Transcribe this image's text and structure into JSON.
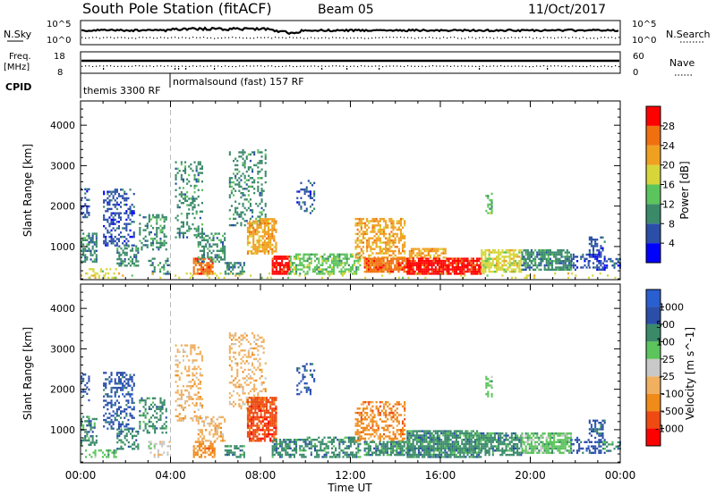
{
  "header": {
    "station": "South Pole Station (fitACF)",
    "beam": "Beam 05",
    "date": "11/Oct/2017"
  },
  "sky_panel": {
    "left_label": "N.Sky",
    "right_label": "N.Search",
    "left_ticks": [
      "10^5",
      "10^0"
    ],
    "right_ticks": [
      "10^5",
      "10^0"
    ]
  },
  "freq_panel": {
    "left_label_1": "Freq.",
    "left_label_2": "[MHz]",
    "left_ticks": [
      "18",
      "8"
    ],
    "right_label": "Nave",
    "right_ticks": [
      "60",
      "0"
    ]
  },
  "cpid": {
    "label": "CPID",
    "programs": [
      {
        "name": "themis 3300 RF",
        "start_hour": 0.0
      },
      {
        "name": "normalsound (fast) 157 RF",
        "start_hour": 4.0
      }
    ]
  },
  "colors": {
    "power": [
      "#0000ff",
      "#2b4fa8",
      "#3a8a6a",
      "#5cc45c",
      "#d6d63a",
      "#f0a020",
      "#f07010",
      "#ff0000"
    ],
    "velocity": [
      "#ff0000",
      "#ee4a12",
      "#f08a18",
      "#f0b060",
      "#c8c8c8",
      "#5cc45c",
      "#3a8a6a",
      "#2b4fa8",
      "#2a5fd0"
    ]
  },
  "chart_data": [
    {
      "type": "heatmap",
      "title": "",
      "xlabel": "",
      "ylabel": "Slant Range [km]",
      "xlim": [
        0,
        24
      ],
      "ylim": [
        180,
        4600
      ],
      "yticks": [
        1000,
        2000,
        3000,
        4000
      ],
      "colorbar_label": "Power [dB]",
      "colorbar_ticks": [
        "4",
        "8",
        "12",
        "16",
        "20",
        "24",
        "28"
      ],
      "clusters": [
        {
          "t0": 0.0,
          "t1": 0.7,
          "r0": 600,
          "r1": 1300,
          "level": 2,
          "density": 0.55
        },
        {
          "t0": 0.0,
          "t1": 0.4,
          "r0": 1700,
          "r1": 2400,
          "level": 1,
          "density": 0.4
        },
        {
          "t0": 0.2,
          "t1": 1.6,
          "r0": 200,
          "r1": 450,
          "level": 4,
          "density": 0.35
        },
        {
          "t0": 1.0,
          "t1": 2.4,
          "r0": 1000,
          "r1": 2400,
          "level": 1,
          "density": 0.45
        },
        {
          "t0": 1.6,
          "t1": 2.6,
          "r0": 500,
          "r1": 1000,
          "level": 2,
          "density": 0.45
        },
        {
          "t0": 2.6,
          "t1": 3.8,
          "r0": 900,
          "r1": 1800,
          "level": 2,
          "density": 0.4
        },
        {
          "t0": 3.0,
          "t1": 4.0,
          "r0": 300,
          "r1": 700,
          "level": 2,
          "density": 0.35
        },
        {
          "t0": 4.2,
          "t1": 5.4,
          "r0": 1200,
          "r1": 3100,
          "level": 2,
          "density": 0.3
        },
        {
          "t0": 5.0,
          "t1": 5.9,
          "r0": 300,
          "r1": 700,
          "level": 6,
          "density": 0.7
        },
        {
          "t0": 5.2,
          "t1": 6.4,
          "r0": 600,
          "r1": 1300,
          "level": 2,
          "density": 0.45
        },
        {
          "t0": 6.4,
          "t1": 7.3,
          "r0": 300,
          "r1": 600,
          "level": 2,
          "density": 0.55
        },
        {
          "t0": 6.6,
          "t1": 8.2,
          "r0": 1500,
          "r1": 3400,
          "level": 2,
          "density": 0.3
        },
        {
          "t0": 7.4,
          "t1": 8.7,
          "r0": 800,
          "r1": 1700,
          "level": 5,
          "density": 0.7
        },
        {
          "t0": 8.5,
          "t1": 9.3,
          "r0": 300,
          "r1": 750,
          "level": 7,
          "density": 0.8
        },
        {
          "t0": 9.3,
          "t1": 12.4,
          "r0": 300,
          "r1": 800,
          "level": 3,
          "density": 0.6
        },
        {
          "t0": 9.6,
          "t1": 10.4,
          "r0": 1800,
          "r1": 2600,
          "level": 1,
          "density": 0.25
        },
        {
          "t0": 12.2,
          "t1": 14.4,
          "r0": 700,
          "r1": 1700,
          "level": 5,
          "density": 0.55
        },
        {
          "t0": 12.6,
          "t1": 14.6,
          "r0": 350,
          "r1": 700,
          "level": 6,
          "density": 0.85
        },
        {
          "t0": 14.6,
          "t1": 16.2,
          "r0": 700,
          "r1": 950,
          "level": 5,
          "density": 0.7
        },
        {
          "t0": 14.5,
          "t1": 17.8,
          "r0": 300,
          "r1": 700,
          "level": 7,
          "density": 0.9
        },
        {
          "t0": 17.8,
          "t1": 19.6,
          "r0": 350,
          "r1": 900,
          "level": 4,
          "density": 0.7
        },
        {
          "t0": 18.0,
          "t1": 18.3,
          "r0": 1800,
          "r1": 2300,
          "level": 3,
          "density": 0.5
        },
        {
          "t0": 19.6,
          "t1": 21.8,
          "r0": 400,
          "r1": 900,
          "level": 2,
          "density": 0.75
        },
        {
          "t0": 21.8,
          "t1": 22.6,
          "r0": 400,
          "r1": 800,
          "level": 1,
          "density": 0.4
        },
        {
          "t0": 22.6,
          "t1": 23.3,
          "r0": 400,
          "r1": 1200,
          "level": 1,
          "density": 0.45
        },
        {
          "t0": 23.2,
          "t1": 24.0,
          "r0": 450,
          "r1": 700,
          "level": 1,
          "density": 0.55
        },
        {
          "t0": 0.0,
          "t1": 24.0,
          "r0": 200,
          "r1": 320,
          "level": 4,
          "density": 0.12
        }
      ]
    },
    {
      "type": "heatmap",
      "title": "",
      "xlabel": "Time UT",
      "ylabel": "Slant Range [km]",
      "xlim": [
        0,
        24
      ],
      "ylim": [
        180,
        4600
      ],
      "yticks": [
        1000,
        2000,
        3000,
        4000
      ],
      "xticks": [
        "00:00",
        "04:00",
        "08:00",
        "12:00",
        "16:00",
        "20:00",
        "00:00"
      ],
      "colorbar_label": "Velocity [m s^-1]",
      "colorbar_ticks": [
        "-1000",
        "-500",
        "-100",
        "-25",
        "25",
        "100",
        "500",
        "1000"
      ],
      "clusters": [
        {
          "t0": 0.0,
          "t1": 0.7,
          "r0": 600,
          "r1": 1300,
          "level": 6,
          "density": 0.55
        },
        {
          "t0": 0.0,
          "t1": 0.4,
          "r0": 1700,
          "r1": 2400,
          "level": 7,
          "density": 0.35
        },
        {
          "t0": 0.2,
          "t1": 1.6,
          "r0": 300,
          "r1": 500,
          "level": 5,
          "density": 0.4
        },
        {
          "t0": 1.0,
          "t1": 2.4,
          "r0": 1000,
          "r1": 2400,
          "level": 7,
          "density": 0.4
        },
        {
          "t0": 1.6,
          "t1": 2.6,
          "r0": 500,
          "r1": 1000,
          "level": 6,
          "density": 0.45
        },
        {
          "t0": 2.6,
          "t1": 3.8,
          "r0": 900,
          "r1": 1800,
          "level": 6,
          "density": 0.4
        },
        {
          "t0": 3.0,
          "t1": 4.0,
          "r0": 300,
          "r1": 700,
          "level": 4,
          "density": 0.35
        },
        {
          "t0": 4.2,
          "t1": 5.4,
          "r0": 1200,
          "r1": 3100,
          "level": 3,
          "density": 0.3
        },
        {
          "t0": 5.0,
          "t1": 6.0,
          "r0": 300,
          "r1": 700,
          "level": 2,
          "density": 0.6
        },
        {
          "t0": 5.2,
          "t1": 6.4,
          "r0": 700,
          "r1": 1300,
          "level": 3,
          "density": 0.4
        },
        {
          "t0": 6.4,
          "t1": 7.3,
          "r0": 300,
          "r1": 600,
          "level": 6,
          "density": 0.5
        },
        {
          "t0": 6.6,
          "t1": 8.2,
          "r0": 1500,
          "r1": 3400,
          "level": 3,
          "density": 0.3
        },
        {
          "t0": 7.4,
          "t1": 8.7,
          "r0": 700,
          "r1": 1800,
          "level": 1,
          "density": 0.8
        },
        {
          "t0": 8.5,
          "t1": 9.3,
          "r0": 300,
          "r1": 750,
          "level": 6,
          "density": 0.7
        },
        {
          "t0": 9.3,
          "t1": 12.4,
          "r0": 300,
          "r1": 800,
          "level": 6,
          "density": 0.55
        },
        {
          "t0": 9.6,
          "t1": 10.4,
          "r0": 1800,
          "r1": 2600,
          "level": 7,
          "density": 0.25
        },
        {
          "t0": 12.2,
          "t1": 14.4,
          "r0": 700,
          "r1": 1700,
          "level": 2,
          "density": 0.45
        },
        {
          "t0": 12.6,
          "t1": 14.6,
          "r0": 350,
          "r1": 700,
          "level": 6,
          "density": 0.75
        },
        {
          "t0": 14.5,
          "t1": 17.8,
          "r0": 300,
          "r1": 950,
          "level": 6,
          "density": 0.85
        },
        {
          "t0": 17.8,
          "t1": 19.6,
          "r0": 350,
          "r1": 900,
          "level": 6,
          "density": 0.7
        },
        {
          "t0": 18.0,
          "t1": 18.3,
          "r0": 1800,
          "r1": 2300,
          "level": 5,
          "density": 0.5
        },
        {
          "t0": 19.6,
          "t1": 21.8,
          "r0": 400,
          "r1": 900,
          "level": 5,
          "density": 0.75
        },
        {
          "t0": 21.8,
          "t1": 22.6,
          "r0": 400,
          "r1": 800,
          "level": 7,
          "density": 0.4
        },
        {
          "t0": 22.6,
          "t1": 23.3,
          "r0": 400,
          "r1": 1200,
          "level": 7,
          "density": 0.4
        },
        {
          "t0": 23.2,
          "t1": 24.0,
          "r0": 450,
          "r1": 700,
          "level": 6,
          "density": 0.55
        }
      ]
    }
  ]
}
